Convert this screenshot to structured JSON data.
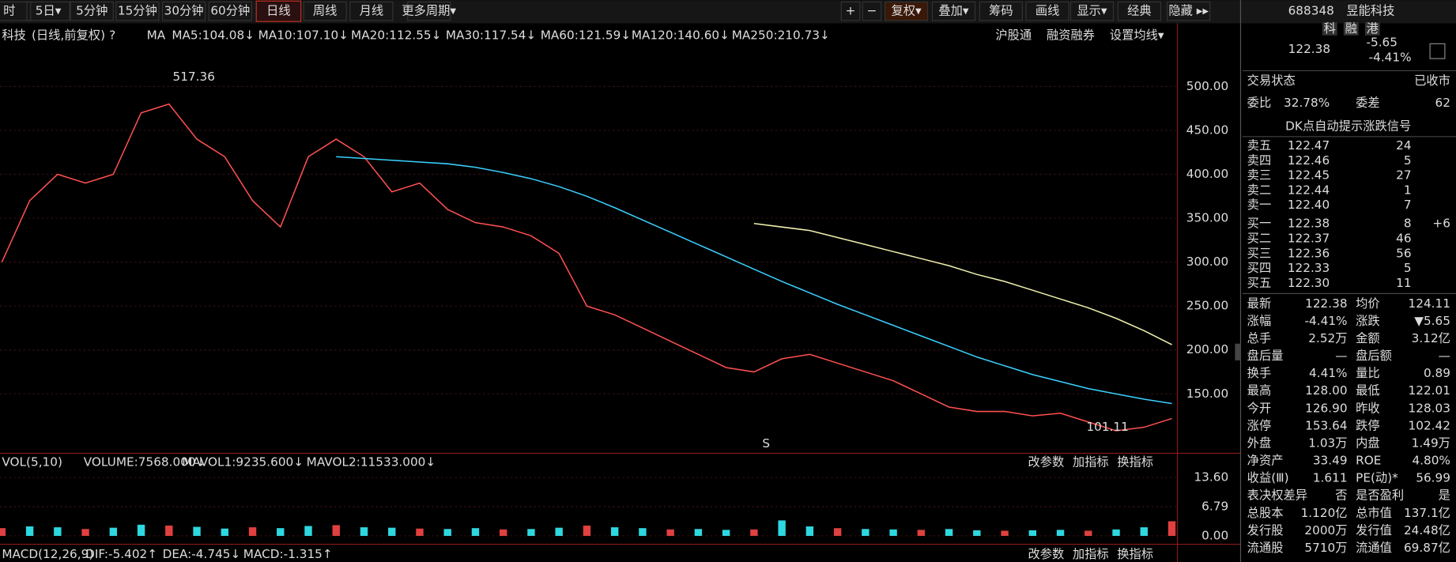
{
  "toolbar": {
    "left": [
      "时",
      "5日▾",
      "5分钟",
      "15分钟",
      "30分钟",
      "60分钟",
      "日线",
      "周线",
      "月线",
      "更多周期▾"
    ],
    "right": [
      "+",
      "−",
      "复权▾",
      "叠加▾",
      "筹码",
      "画线",
      "显示▾",
      "经典",
      "隐藏 ▸▸"
    ]
  },
  "price_panel": {
    "name": "科技",
    "mode": "(日线,前复权)",
    "help": "?",
    "ma_label": "MA",
    "ma_legend": [
      {
        "label": "MA5:104.08↓",
        "color": "#ffffff"
      },
      {
        "label": "MA10:107.10↓",
        "color": "#ffd23a"
      },
      {
        "label": "MA20:112.55↓",
        "color": "#ff3cff"
      },
      {
        "label": "MA30:117.54↓",
        "color": "#36e036"
      },
      {
        "label": "MA60:121.59↓",
        "color": "#cccccc"
      },
      {
        "label": "MA120:140.60↓",
        "color": "#3ad0ff"
      },
      {
        "label": "MA250:210.73↓",
        "color": "#f0f0b0"
      }
    ],
    "links": [
      "沪股通",
      "融资融券",
      "设置均线▾"
    ],
    "ylim": [
      85.6,
      529.6
    ],
    "yticks": [
      {
        "value": 150,
        "label": "150.00"
      },
      {
        "value": 200,
        "label": "200.00"
      },
      {
        "value": 250,
        "label": "250.00"
      },
      {
        "value": 300,
        "label": "300.00"
      },
      {
        "value": 350,
        "label": "350.00"
      },
      {
        "value": 400,
        "label": "400.00"
      },
      {
        "value": 450,
        "label": "450.00"
      },
      {
        "value": 500,
        "label": "500.00"
      }
    ],
    "series": [
      {
        "color": "#ff5050",
        "values": [
          300,
          370,
          400,
          390,
          400,
          470,
          480,
          440,
          420,
          370,
          340,
          420,
          440,
          420,
          380,
          390,
          360,
          345,
          340,
          330,
          310,
          250,
          240,
          225,
          210,
          195,
          180,
          175,
          190,
          195,
          185,
          175,
          165,
          150,
          135,
          130,
          130,
          125,
          128,
          118,
          108,
          112,
          122
        ]
      },
      {
        "color": "#3ad0ff",
        "values": [
          null,
          null,
          null,
          null,
          null,
          null,
          null,
          null,
          null,
          null,
          null,
          null,
          420,
          418,
          416,
          414,
          412,
          408,
          402,
          395,
          386,
          375,
          362,
          348,
          334,
          320,
          306,
          292,
          278,
          265,
          252,
          240,
          228,
          216,
          204,
          192,
          182,
          172,
          164,
          156,
          150,
          144,
          139
        ]
      },
      {
        "color": "#f0f0b0",
        "values": [
          null,
          null,
          null,
          null,
          null,
          null,
          null,
          null,
          null,
          null,
          null,
          null,
          null,
          null,
          null,
          null,
          null,
          null,
          null,
          null,
          null,
          null,
          null,
          null,
          null,
          null,
          null,
          344,
          340,
          336,
          328,
          320,
          312,
          304,
          296,
          286,
          278,
          268,
          258,
          248,
          236,
          222,
          206
        ]
      }
    ],
    "annotations": [
      "517.36",
      "101.11",
      "S"
    ]
  },
  "volume_panel": {
    "header": [
      "VOL(5,10)",
      "VOLUME:7568.000↓",
      "MAVOL1:9235.600↓",
      "MAVOL2:11533.000↓"
    ],
    "links": [
      "改参数",
      "加指标",
      "换指标"
    ],
    "ylim": [
      0,
      13.6
    ],
    "yticks": [
      {
        "value": 0,
        "label": "0.00"
      },
      6.79,
      {
        "value": 13.6,
        "label": "13.60"
      }
    ],
    "values": [
      1.8,
      2.2,
      2.0,
      1.6,
      1.9,
      2.6,
      2.4,
      2.1,
      1.7,
      2.0,
      1.8,
      2.3,
      2.5,
      2.0,
      1.9,
      1.7,
      1.6,
      1.8,
      1.5,
      1.6,
      1.9,
      2.4,
      2.0,
      1.8,
      1.5,
      1.6,
      1.4,
      1.5,
      3.6,
      2.2,
      1.8,
      1.6,
      1.5,
      1.4,
      1.6,
      1.3,
      1.2,
      1.3,
      1.4,
      1.2,
      1.5,
      2.0,
      3.4
    ]
  },
  "macd_panel": {
    "header": [
      "MACD(12,26,9)",
      "DIF:-5.402↑",
      "DEA:-4.745↓",
      "MACD:-1.315↑"
    ],
    "links": [
      "改参数",
      "加指标",
      "换指标"
    ]
  },
  "quote": {
    "code": "688348",
    "name": "昱能科技",
    "badges": [
      "科",
      "融",
      "港"
    ],
    "price": "122.38",
    "change": "-5.65",
    "change_pct": "-4.41%",
    "status": [
      "交易状态",
      "已收市"
    ],
    "ratio": [
      "委比",
      "32.78%",
      "委差",
      "62"
    ],
    "signal": "DK点自动提示涨跌信号",
    "book": [
      [
        "卖五",
        "122.47",
        "24",
        ""
      ],
      [
        "卖四",
        "122.46",
        "5",
        ""
      ],
      [
        "卖三",
        "122.45",
        "27",
        ""
      ],
      [
        "卖二",
        "122.44",
        "1",
        ""
      ],
      [
        "卖一",
        "122.40",
        "7",
        ""
      ],
      [
        "买一",
        "122.38",
        "8",
        "+6"
      ],
      [
        "买二",
        "122.37",
        "46",
        ""
      ],
      [
        "买三",
        "122.36",
        "56",
        ""
      ],
      [
        "买四",
        "122.33",
        "5",
        ""
      ],
      [
        "买五",
        "122.30",
        "11",
        ""
      ]
    ],
    "stats": [
      [
        "最新",
        "122.38",
        "均价",
        "124.11"
      ],
      [
        "涨幅",
        "-4.41%",
        "涨跌",
        "▼5.65"
      ],
      [
        "总手",
        "2.52万",
        "金额",
        "3.12亿"
      ],
      [
        "盘后量",
        "—",
        "盘后额",
        "—"
      ],
      [
        "换手",
        "4.41%",
        "量比",
        "0.89"
      ],
      [
        "最高",
        "128.00",
        "最低",
        "122.01"
      ],
      [
        "今开",
        "126.90",
        "昨收",
        "128.03"
      ],
      [
        "涨停",
        "153.64",
        "跌停",
        "102.42"
      ],
      [
        "外盘",
        "1.03万",
        "内盘",
        "1.49万"
      ],
      [
        "净资产",
        "33.49",
        "ROE",
        "4.80%"
      ],
      [
        "收益(Ⅲ)",
        "1.611",
        "PE(动)*",
        "56.99"
      ],
      [
        "表决权差异",
        "否",
        "是否盈利",
        "是"
      ],
      [
        "总股本",
        "1.120亿",
        "总市值",
        "137.1亿"
      ],
      [
        "发行股",
        "2000万",
        "发行值",
        "24.48亿"
      ],
      [
        "流通股",
        "5710万",
        "流通值",
        "69.87亿"
      ]
    ]
  }
}
